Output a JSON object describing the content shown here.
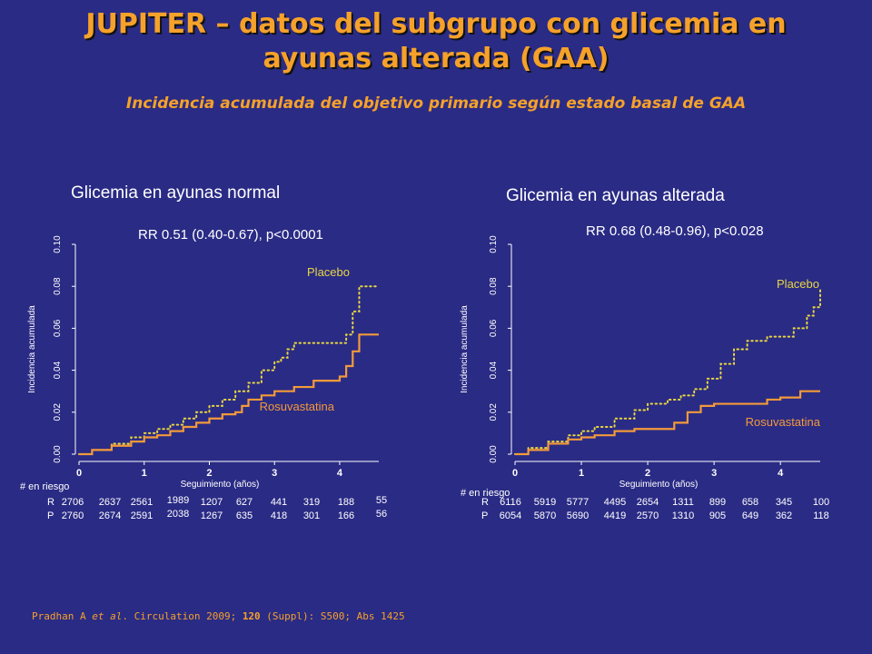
{
  "title": {
    "line1": "JUPITER – datos del subgrupo con glicemia en",
    "line2": "ayunas alterada (GAA)"
  },
  "subtitle": "Incidencia acumulada del objetivo primario según estado basal de GAA",
  "colors": {
    "background": "#2a2b85",
    "title": "#f5a12a",
    "placebo": "#e8d640",
    "rosuvastatina": "#f39a3a"
  },
  "citation": {
    "prefix": "Pradhan A ",
    "etal": "et al",
    "middle": ". Circulation 2009; ",
    "volume": "120",
    "suffix": " (Suppl): S500; Abs 1425"
  },
  "chart_data": [
    {
      "type": "line",
      "title": "Glicemia en ayunas normal",
      "annotation": "RR 0.51 (0.40-0.67), p<0.0001",
      "xlabel": "Seguimiento (años)",
      "ylabel": "Incidencia acumulada",
      "xlim": [
        0,
        4.6
      ],
      "ylim": [
        0,
        0.1
      ],
      "xticks": [
        "0",
        "1",
        "2",
        "3",
        "4"
      ],
      "yticks": [
        "0.00",
        "0.02",
        "0.04",
        "0.06",
        "0.08",
        "0.10"
      ],
      "series": [
        {
          "name": "Placebo",
          "style": "dotted",
          "points": [
            [
              0,
              0
            ],
            [
              0.2,
              0.002
            ],
            [
              0.5,
              0.005
            ],
            [
              0.8,
              0.008
            ],
            [
              1.0,
              0.01
            ],
            [
              1.2,
              0.012
            ],
            [
              1.4,
              0.014
            ],
            [
              1.6,
              0.017
            ],
            [
              1.8,
              0.02
            ],
            [
              2.0,
              0.023
            ],
            [
              2.2,
              0.026
            ],
            [
              2.4,
              0.03
            ],
            [
              2.6,
              0.034
            ],
            [
              2.8,
              0.04
            ],
            [
              3.0,
              0.044
            ],
            [
              3.1,
              0.046
            ],
            [
              3.2,
              0.05
            ],
            [
              3.3,
              0.053
            ],
            [
              4.0,
              0.053
            ],
            [
              4.1,
              0.057
            ],
            [
              4.2,
              0.068
            ],
            [
              4.3,
              0.08
            ],
            [
              4.6,
              0.08
            ]
          ]
        },
        {
          "name": "Rosuvastatina",
          "style": "solid",
          "points": [
            [
              0,
              0
            ],
            [
              0.2,
              0.002
            ],
            [
              0.5,
              0.004
            ],
            [
              0.8,
              0.006
            ],
            [
              1.0,
              0.008
            ],
            [
              1.2,
              0.009
            ],
            [
              1.4,
              0.011
            ],
            [
              1.6,
              0.013
            ],
            [
              1.8,
              0.015
            ],
            [
              2.0,
              0.017
            ],
            [
              2.2,
              0.019
            ],
            [
              2.4,
              0.02
            ],
            [
              2.5,
              0.023
            ],
            [
              2.6,
              0.026
            ],
            [
              2.8,
              0.028
            ],
            [
              3.0,
              0.03
            ],
            [
              3.3,
              0.032
            ],
            [
              3.6,
              0.035
            ],
            [
              4.0,
              0.037
            ],
            [
              4.1,
              0.042
            ],
            [
              4.2,
              0.049
            ],
            [
              4.3,
              0.057
            ],
            [
              4.6,
              0.057
            ]
          ]
        }
      ],
      "risk_table": {
        "header": "# en riesgo",
        "rows": [
          {
            "label": "R",
            "values": [
              "2706",
              "2637",
              "2561",
              "1989",
              "1207",
              "627",
              "441",
              "319",
              "188",
              "55"
            ]
          },
          {
            "label": "P",
            "values": [
              "2760",
              "2674",
              "2591",
              "2038",
              "1267",
              "635",
              "418",
              "301",
              "166",
              "56"
            ]
          }
        ]
      }
    },
    {
      "type": "line",
      "title": "Glicemia en ayunas alterada",
      "annotation": "RR 0.68 (0.48-0.96), p<0.028",
      "xlabel": "Seguimiento (años)",
      "ylabel": "Incidencia acumulada",
      "xlim": [
        0,
        4.6
      ],
      "ylim": [
        0,
        0.1
      ],
      "xticks": [
        "0",
        "1",
        "2",
        "3",
        "4"
      ],
      "yticks": [
        "0.00",
        "0.02",
        "0.04",
        "0.06",
        "0.08",
        "0.10"
      ],
      "series": [
        {
          "name": "Placebo",
          "style": "dotted",
          "points": [
            [
              0,
              0
            ],
            [
              0.2,
              0.003
            ],
            [
              0.5,
              0.006
            ],
            [
              0.8,
              0.009
            ],
            [
              1.0,
              0.011
            ],
            [
              1.2,
              0.013
            ],
            [
              1.5,
              0.017
            ],
            [
              1.8,
              0.021
            ],
            [
              2.0,
              0.024
            ],
            [
              2.3,
              0.026
            ],
            [
              2.5,
              0.028
            ],
            [
              2.7,
              0.031
            ],
            [
              2.9,
              0.036
            ],
            [
              3.1,
              0.043
            ],
            [
              3.3,
              0.05
            ],
            [
              3.5,
              0.054
            ],
            [
              3.8,
              0.056
            ],
            [
              4.2,
              0.06
            ],
            [
              4.4,
              0.066
            ],
            [
              4.5,
              0.07
            ],
            [
              4.6,
              0.079
            ]
          ]
        },
        {
          "name": "Rosuvastatina",
          "style": "solid",
          "points": [
            [
              0,
              0
            ],
            [
              0.2,
              0.002
            ],
            [
              0.5,
              0.005
            ],
            [
              0.8,
              0.007
            ],
            [
              1.0,
              0.008
            ],
            [
              1.2,
              0.009
            ],
            [
              1.5,
              0.011
            ],
            [
              1.8,
              0.012
            ],
            [
              2.2,
              0.012
            ],
            [
              2.4,
              0.015
            ],
            [
              2.6,
              0.02
            ],
            [
              2.8,
              0.023
            ],
            [
              3.0,
              0.024
            ],
            [
              3.5,
              0.024
            ],
            [
              3.8,
              0.026
            ],
            [
              4.0,
              0.027
            ],
            [
              4.3,
              0.03
            ],
            [
              4.6,
              0.03
            ]
          ]
        }
      ],
      "risk_table": {
        "header": "# en riesgo",
        "rows": [
          {
            "label": "R",
            "values": [
              "6116",
              "5919",
              "5777",
              "4495",
              "2654",
              "1311",
              "899",
              "658",
              "345",
              "100"
            ]
          },
          {
            "label": "P",
            "values": [
              "6054",
              "5870",
              "5690",
              "4419",
              "2570",
              "1310",
              "905",
              "649",
              "362",
              "118"
            ]
          }
        ]
      }
    }
  ]
}
